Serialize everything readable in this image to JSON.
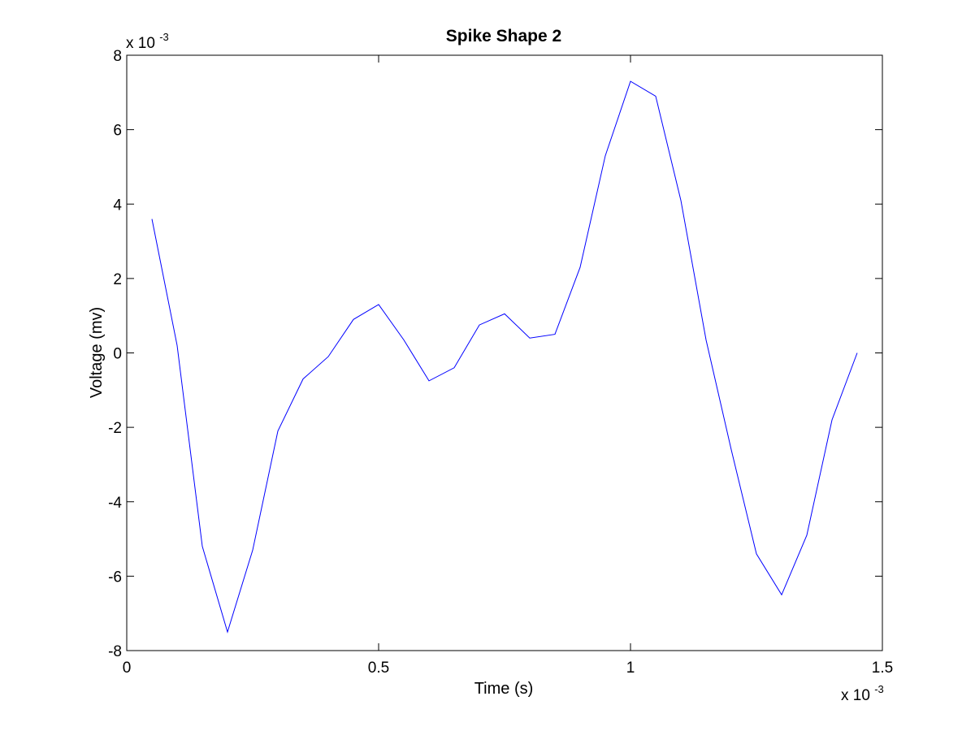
{
  "chart_data": {
    "type": "line",
    "title": "Spike Shape 2",
    "xlabel": "Time (s)",
    "ylabel": "Voltage (mv)",
    "x_multiplier_label": "x 10",
    "x_multiplier_exp": "-3",
    "y_multiplier_label": "x 10",
    "y_multiplier_exp": "-3",
    "xlim": [
      0,
      1.5
    ],
    "ylim": [
      -8,
      8
    ],
    "xticks": [
      0,
      0.5,
      1,
      1.5
    ],
    "xtick_labels": [
      "0",
      "0.5",
      "1",
      "1.5"
    ],
    "yticks": [
      -8,
      -6,
      -4,
      -2,
      0,
      2,
      4,
      6,
      8
    ],
    "ytick_labels": [
      "-8",
      "-6",
      "-4",
      "-2",
      "0",
      "2",
      "4",
      "6",
      "8"
    ],
    "grid": false,
    "line_color": "#0000ff",
    "series": [
      {
        "x": [
          0.05,
          0.1,
          0.15,
          0.2,
          0.25,
          0.3,
          0.35,
          0.4,
          0.45,
          0.5,
          0.55,
          0.6,
          0.65,
          0.7,
          0.75,
          0.8,
          0.85,
          0.9,
          0.95,
          1.0,
          1.05,
          1.1,
          1.15,
          1.2,
          1.25,
          1.3,
          1.35,
          1.4,
          1.45
        ],
        "y": [
          3.6,
          0.2,
          -5.2,
          -7.5,
          -5.3,
          -2.1,
          -0.7,
          -0.1,
          0.9,
          1.3,
          0.35,
          -0.75,
          -0.4,
          0.75,
          1.05,
          0.4,
          0.5,
          2.3,
          5.3,
          7.3,
          6.9,
          4.1,
          0.35,
          -2.6,
          -5.4,
          -6.5,
          -4.9,
          -1.8,
          0.0
        ]
      }
    ]
  }
}
